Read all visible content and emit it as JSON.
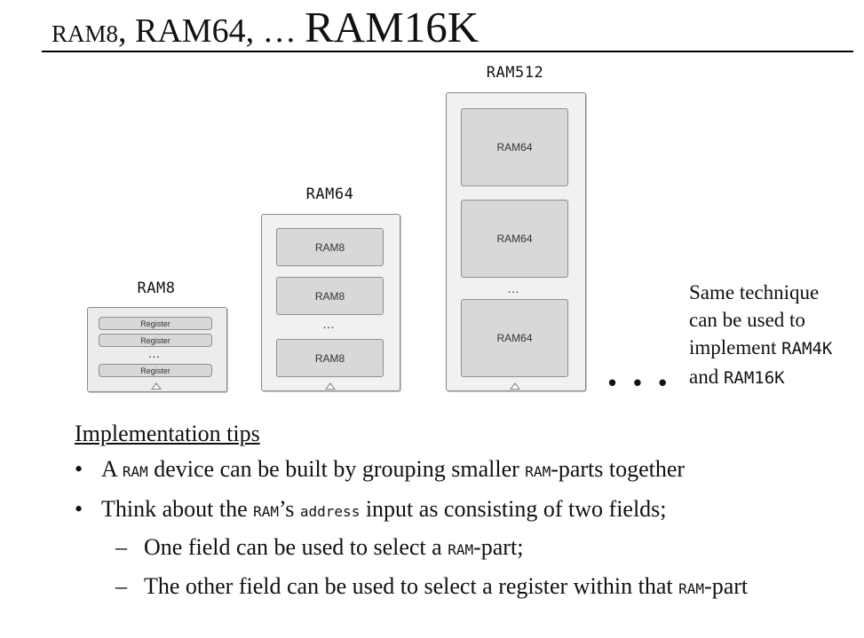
{
  "title": {
    "part1": "RAM8",
    "part2": ", RAM64, … ",
    "part3": "RAM16K"
  },
  "blocks": {
    "ram8": {
      "label": "RAM8",
      "registers": [
        "Register",
        "Register",
        "Register"
      ],
      "ellipsis": "…"
    },
    "ram64": {
      "label": "RAM64",
      "parts": [
        "RAM8",
        "RAM8",
        "RAM8"
      ],
      "ellipsis": "…"
    },
    "ram512": {
      "label": "RAM512",
      "parts": [
        "RAM64",
        "RAM64",
        "RAM64"
      ],
      "ellipsis": "…"
    },
    "more": "• • •"
  },
  "side_note": {
    "line1": "Same technique",
    "line2": "can be used to",
    "line3_text": "implement ",
    "line3_code": "RAM4K",
    "line4_text": "and ",
    "line4_code": "RAM16K"
  },
  "tips": {
    "heading": "Implementation tips",
    "bullet1": {
      "mark": "•",
      "a": "A ",
      "code1": "RAM",
      "b": " device can be built by grouping smaller ",
      "code2": "RAM",
      "c": "-parts together"
    },
    "bullet2": {
      "mark": "•",
      "a": "Think about the ",
      "code1": "RAM",
      "b": "’s ",
      "code2": "address",
      "c": " input as consisting of two fields;"
    },
    "sub1": {
      "mark": "–",
      "a": "One field can be used to select a ",
      "code": "RAM",
      "b": "-part;"
    },
    "sub2": {
      "mark": "–",
      "a": "The other field can be used to select a register within that ",
      "code": "RAM",
      "b": "-part"
    }
  }
}
